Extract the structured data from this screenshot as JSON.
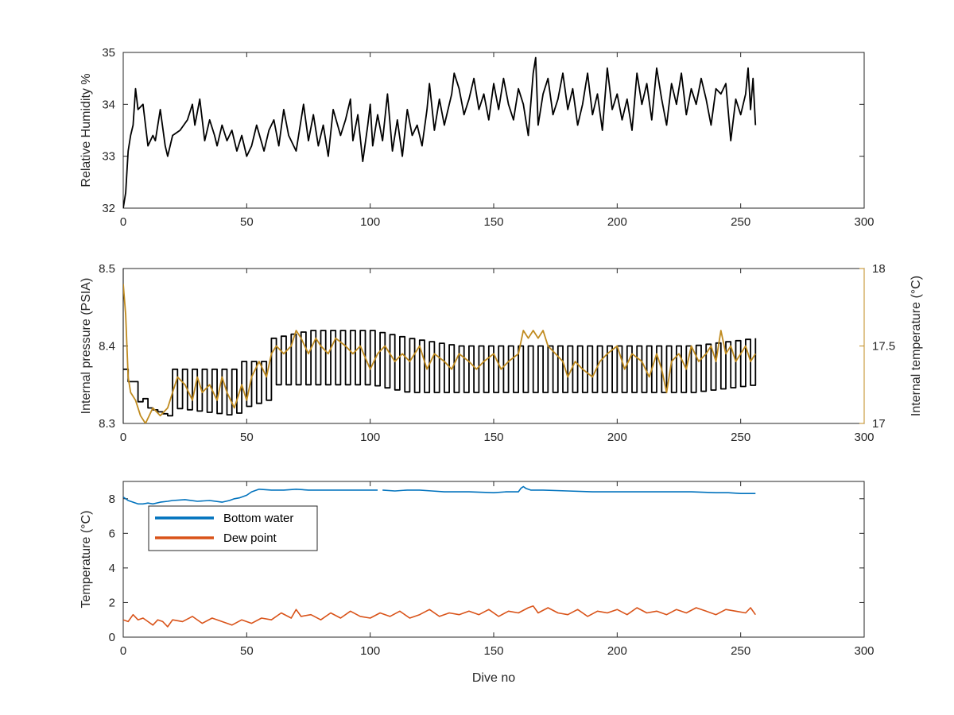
{
  "figure": {
    "xlabel": "Dive no"
  },
  "chart_data": [
    {
      "type": "line",
      "ylabel": "Relative Humidity %",
      "xlim": [
        0,
        300
      ],
      "ylim": [
        32,
        35
      ],
      "x_ticks": [
        0,
        50,
        100,
        150,
        200,
        250,
        300
      ],
      "y_ticks": [
        32,
        33,
        34,
        35
      ],
      "grid": false,
      "colors": {
        "series": "#000000"
      },
      "series": [
        {
          "x": [
            0,
            1,
            2,
            3,
            4,
            5,
            6,
            8,
            10,
            12,
            13,
            15,
            17,
            18,
            20,
            23,
            26,
            28,
            29,
            31,
            33,
            35,
            37,
            38,
            40,
            42,
            44,
            46,
            48,
            50,
            52,
            54,
            57,
            59,
            61,
            63,
            65,
            67,
            70,
            73,
            75,
            77,
            79,
            81,
            83,
            85,
            88,
            90,
            92,
            93,
            95,
            97,
            99,
            100,
            101,
            103,
            105,
            107,
            109,
            111,
            113,
            115,
            117,
            119,
            121,
            123,
            124,
            126,
            128,
            130,
            132,
            133,
            134,
            136,
            138,
            140,
            142,
            144,
            146,
            148,
            150,
            152,
            154,
            156,
            158,
            160,
            162,
            164,
            166,
            167,
            168,
            170,
            172,
            174,
            176,
            178,
            180,
            182,
            184,
            186,
            188,
            190,
            192,
            194,
            196,
            198,
            200,
            202,
            204,
            206,
            208,
            210,
            212,
            214,
            216,
            218,
            220,
            222,
            224,
            226,
            228,
            230,
            232,
            234,
            236,
            238,
            240,
            242,
            244,
            246,
            248,
            250,
            252,
            253,
            254,
            255,
            256
          ],
          "y": [
            32.0,
            32.3,
            33.1,
            33.4,
            33.6,
            34.3,
            33.9,
            34.0,
            33.2,
            33.4,
            33.3,
            33.9,
            33.2,
            33.0,
            33.4,
            33.5,
            33.7,
            34.0,
            33.6,
            34.1,
            33.3,
            33.7,
            33.4,
            33.2,
            33.6,
            33.3,
            33.5,
            33.1,
            33.4,
            33.0,
            33.2,
            33.6,
            33.1,
            33.5,
            33.7,
            33.2,
            33.9,
            33.4,
            33.1,
            34.0,
            33.3,
            33.8,
            33.2,
            33.6,
            33.0,
            33.9,
            33.4,
            33.7,
            34.1,
            33.3,
            33.8,
            32.9,
            33.6,
            34.0,
            33.2,
            33.8,
            33.3,
            34.2,
            33.1,
            33.7,
            33.0,
            33.9,
            33.4,
            33.6,
            33.2,
            33.9,
            34.4,
            33.5,
            34.1,
            33.6,
            34.0,
            34.2,
            34.6,
            34.3,
            33.8,
            34.1,
            34.5,
            33.9,
            34.2,
            33.7,
            34.4,
            33.9,
            34.5,
            34.0,
            33.7,
            34.3,
            34.0,
            33.4,
            34.6,
            34.9,
            33.6,
            34.2,
            34.5,
            33.8,
            34.1,
            34.6,
            33.9,
            34.3,
            33.6,
            34.0,
            34.6,
            33.8,
            34.2,
            33.5,
            34.7,
            33.9,
            34.2,
            33.7,
            34.1,
            33.5,
            34.6,
            34.0,
            34.4,
            33.7,
            34.7,
            34.1,
            33.6,
            34.4,
            34.0,
            34.6,
            33.8,
            34.3,
            34.0,
            34.5,
            34.1,
            33.6,
            34.3,
            34.2,
            34.4,
            33.3,
            34.1,
            33.8,
            34.2,
            34.7,
            33.9,
            34.5,
            33.6
          ],
          "color": "#000000"
        }
      ]
    },
    {
      "type": "line",
      "ylabel": "Internal pressure (PSIA)",
      "y2label": "Internal temperature (°C)",
      "xlim": [
        0,
        300
      ],
      "ylim": [
        8.3,
        8.5
      ],
      "y2lim": [
        17,
        18
      ],
      "x_ticks": [
        0,
        50,
        100,
        150,
        200,
        250,
        300
      ],
      "y_ticks": [
        8.3,
        8.4,
        8.5
      ],
      "y2_ticks": [
        17,
        17.5,
        18
      ],
      "grid": false,
      "colors": {
        "left_axis": "#000000",
        "right_axis": "#c08b1f"
      },
      "series": [
        {
          "axis": "left",
          "color": "#000000",
          "pattern": "square-wave",
          "x": [
            0,
            5,
            10,
            18,
            20,
            45,
            48,
            58,
            60,
            75,
            100,
            115,
            135,
            160,
            200,
            230,
            256
          ],
          "low": [
            8.37,
            8.33,
            8.32,
            8.31,
            8.32,
            8.31,
            8.32,
            8.33,
            8.35,
            8.35,
            8.35,
            8.34,
            8.34,
            8.34,
            8.34,
            8.34,
            8.35
          ],
          "high": [
            8.37,
            8.35,
            8.32,
            8.31,
            8.37,
            8.37,
            8.38,
            8.38,
            8.41,
            8.42,
            8.42,
            8.41,
            8.4,
            8.4,
            8.4,
            8.4,
            8.41
          ],
          "period": 4
        },
        {
          "axis": "right",
          "color": "#c08b1f",
          "x": [
            0,
            1,
            2,
            3,
            5,
            7,
            9,
            12,
            15,
            18,
            20,
            22,
            25,
            28,
            30,
            32,
            35,
            38,
            40,
            42,
            45,
            48,
            50,
            52,
            55,
            58,
            60,
            62,
            65,
            68,
            70,
            72,
            75,
            78,
            80,
            83,
            86,
            90,
            93,
            96,
            100,
            103,
            106,
            110,
            113,
            116,
            120,
            123,
            126,
            130,
            133,
            136,
            140,
            143,
            146,
            150,
            153,
            156,
            160,
            162,
            164,
            166,
            168,
            170,
            172,
            175,
            178,
            180,
            183,
            186,
            190,
            193,
            196,
            200,
            203,
            206,
            210,
            213,
            216,
            218,
            220,
            222,
            225,
            228,
            230,
            233,
            236,
            238,
            240,
            242,
            244,
            246,
            248,
            250,
            252,
            254,
            256
          ],
          "y": [
            17.9,
            17.7,
            17.3,
            17.2,
            17.15,
            17.05,
            17.0,
            17.1,
            17.05,
            17.1,
            17.2,
            17.3,
            17.25,
            17.15,
            17.3,
            17.2,
            17.25,
            17.15,
            17.3,
            17.2,
            17.1,
            17.25,
            17.15,
            17.3,
            17.4,
            17.3,
            17.45,
            17.5,
            17.45,
            17.5,
            17.6,
            17.55,
            17.45,
            17.55,
            17.5,
            17.45,
            17.55,
            17.5,
            17.45,
            17.5,
            17.35,
            17.45,
            17.5,
            17.4,
            17.45,
            17.4,
            17.5,
            17.35,
            17.45,
            17.4,
            17.35,
            17.45,
            17.4,
            17.35,
            17.4,
            17.45,
            17.35,
            17.4,
            17.45,
            17.6,
            17.55,
            17.6,
            17.55,
            17.6,
            17.5,
            17.45,
            17.4,
            17.3,
            17.4,
            17.35,
            17.3,
            17.4,
            17.45,
            17.5,
            17.35,
            17.45,
            17.4,
            17.3,
            17.45,
            17.35,
            17.2,
            17.4,
            17.45,
            17.35,
            17.5,
            17.4,
            17.45,
            17.5,
            17.4,
            17.6,
            17.45,
            17.5,
            17.4,
            17.45,
            17.5,
            17.4,
            17.45
          ]
        }
      ]
    },
    {
      "type": "line",
      "ylabel": "Temperature (°C)",
      "xlim": [
        0,
        300
      ],
      "ylim": [
        0,
        9
      ],
      "x_ticks": [
        0,
        50,
        100,
        150,
        200,
        250,
        300
      ],
      "y_ticks": [
        0,
        2,
        4,
        6,
        8
      ],
      "grid": false,
      "legend": "top-left",
      "series": [
        {
          "name": "Bottom water",
          "color": "#0072bd",
          "x": [
            0,
            2,
            4,
            6,
            8,
            10,
            12,
            15,
            18,
            20,
            25,
            30,
            35,
            40,
            43,
            45,
            47,
            48,
            50,
            52,
            55,
            60,
            65,
            70,
            75,
            80,
            85,
            90,
            95,
            100,
            103,
            104,
            105,
            110,
            115,
            120,
            125,
            130,
            140,
            150,
            155,
            160,
            161,
            162,
            163,
            165,
            170,
            180,
            190,
            200,
            210,
            220,
            230,
            240,
            245,
            250,
            256
          ],
          "y": [
            8.1,
            7.9,
            7.8,
            7.7,
            7.7,
            7.75,
            7.7,
            7.8,
            7.85,
            7.9,
            7.95,
            7.85,
            7.9,
            7.8,
            7.9,
            8.0,
            8.05,
            8.1,
            8.2,
            8.4,
            8.55,
            8.5,
            8.5,
            8.55,
            8.5,
            8.5,
            8.5,
            8.5,
            8.5,
            8.5,
            8.5,
            null,
            8.5,
            8.45,
            8.5,
            8.5,
            8.45,
            8.4,
            8.4,
            8.35,
            8.4,
            8.4,
            8.6,
            8.7,
            8.6,
            8.5,
            8.5,
            8.45,
            8.4,
            8.4,
            8.4,
            8.4,
            8.4,
            8.35,
            8.35,
            8.3,
            8.3
          ]
        },
        {
          "name": "Dew point",
          "color": "#d95319",
          "x": [
            0,
            2,
            4,
            6,
            8,
            10,
            12,
            14,
            16,
            18,
            20,
            24,
            28,
            32,
            36,
            40,
            44,
            48,
            52,
            56,
            60,
            64,
            68,
            70,
            72,
            76,
            80,
            84,
            88,
            92,
            96,
            100,
            104,
            108,
            112,
            116,
            120,
            124,
            128,
            132,
            136,
            140,
            144,
            148,
            152,
            156,
            160,
            164,
            166,
            168,
            172,
            176,
            180,
            184,
            188,
            192,
            196,
            200,
            204,
            208,
            212,
            216,
            220,
            224,
            228,
            232,
            236,
            240,
            244,
            248,
            252,
            254,
            256
          ],
          "y": [
            1.0,
            0.9,
            1.3,
            1.0,
            1.1,
            0.9,
            0.7,
            1.0,
            0.9,
            0.6,
            1.0,
            0.9,
            1.2,
            0.8,
            1.1,
            0.9,
            0.7,
            1.0,
            0.8,
            1.1,
            1.0,
            1.4,
            1.1,
            1.6,
            1.2,
            1.3,
            1.0,
            1.4,
            1.1,
            1.5,
            1.2,
            1.1,
            1.4,
            1.2,
            1.5,
            1.1,
            1.3,
            1.6,
            1.2,
            1.4,
            1.3,
            1.5,
            1.3,
            1.6,
            1.2,
            1.5,
            1.4,
            1.7,
            1.8,
            1.4,
            1.7,
            1.4,
            1.3,
            1.6,
            1.2,
            1.5,
            1.4,
            1.6,
            1.3,
            1.7,
            1.4,
            1.5,
            1.3,
            1.6,
            1.4,
            1.7,
            1.5,
            1.3,
            1.6,
            1.5,
            1.4,
            1.7,
            1.3
          ]
        }
      ]
    }
  ]
}
